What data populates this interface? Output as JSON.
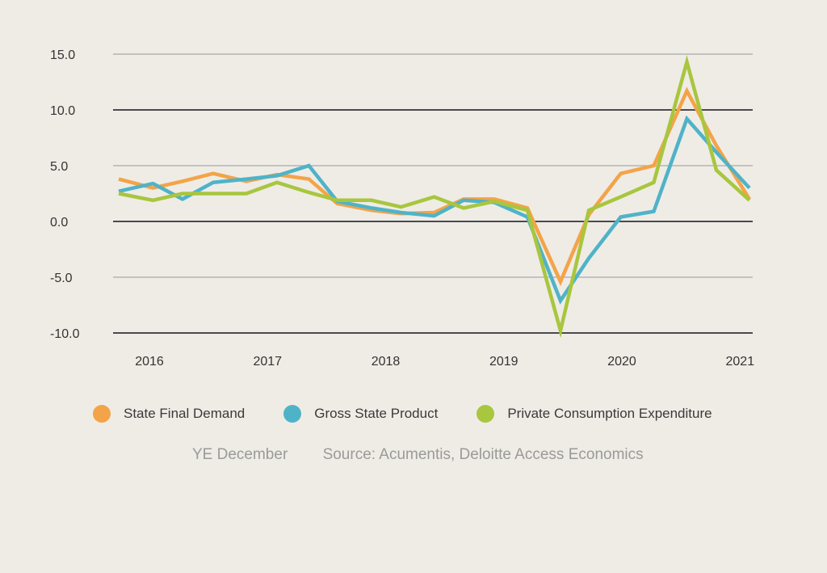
{
  "chart_data": {
    "type": "line",
    "title": "",
    "xlabel": "",
    "ylabel": "",
    "ylim": [
      -10,
      15
    ],
    "yticks": [
      15,
      10,
      5,
      0,
      -5,
      -10
    ],
    "ytick_labels": [
      "15.0",
      "10.0",
      "5.0",
      "0.0",
      "-5.0",
      "-10.0"
    ],
    "xlim": [
      2015.74,
      2021.08
    ],
    "xticks": [
      2016,
      2017,
      2018,
      2019,
      2020,
      2021
    ],
    "xtick_labels": [
      "2016",
      "2017",
      "2018",
      "2019",
      "2020",
      "2021"
    ],
    "grid": true,
    "legend_position": "bottom",
    "x": [
      2015.74,
      2016.03,
      2016.28,
      2016.54,
      2016.82,
      2017.08,
      2017.35,
      2017.59,
      2017.88,
      2018.13,
      2018.41,
      2018.66,
      2018.92,
      2019.2,
      2019.48,
      2019.72,
      2019.99,
      2020.27,
      2020.55,
      2020.8,
      2021.08
    ],
    "series": [
      {
        "name": "State Final Demand",
        "color": "#f3a448",
        "values": [
          3.8,
          3.0,
          3.6,
          4.3,
          3.6,
          4.2,
          3.8,
          1.6,
          1.0,
          0.7,
          0.8,
          2.0,
          2.0,
          1.2,
          -5.4,
          0.6,
          4.3,
          5.0,
          11.7,
          6.8,
          2.0
        ]
      },
      {
        "name": "Gross State Product",
        "color": "#4fb3c8",
        "values": [
          2.7,
          3.4,
          2.0,
          3.5,
          3.8,
          4.1,
          5.0,
          1.8,
          1.2,
          0.8,
          0.5,
          1.9,
          1.7,
          0.4,
          -7.1,
          -3.3,
          0.4,
          0.9,
          9.2,
          6.2,
          3.0
        ]
      },
      {
        "name": "Private Consumption Expenditure",
        "color": "#a8c63e",
        "values": [
          2.5,
          1.9,
          2.5,
          2.5,
          2.5,
          3.5,
          2.6,
          1.9,
          1.9,
          1.3,
          2.2,
          1.2,
          1.8,
          1.0,
          -9.8,
          1.0,
          2.2,
          3.5,
          14.3,
          4.6,
          1.9
        ]
      }
    ]
  },
  "footer": {
    "period": "YE December",
    "source": "Source: Acumentis, Deloitte Access Economics"
  }
}
